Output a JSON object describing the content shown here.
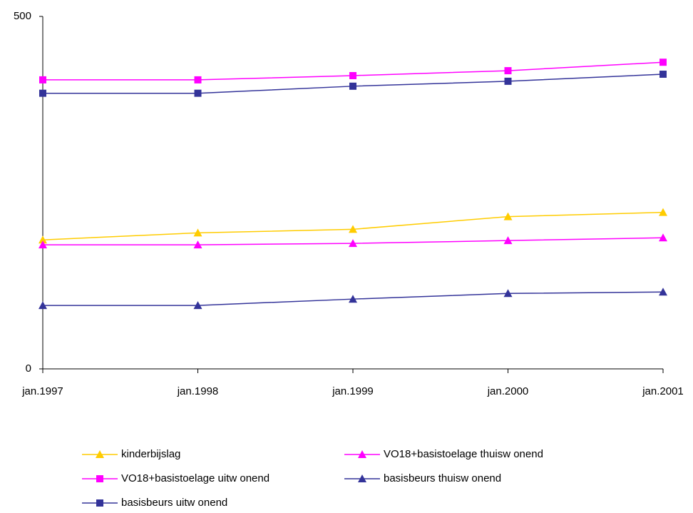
{
  "chart_data": {
    "type": "line",
    "categories": [
      "jan.1997",
      "jan.1998",
      "jan.1999",
      "jan.2000",
      "jan.2001"
    ],
    "ylim": [
      0,
      500
    ],
    "yticks": [
      0,
      500
    ],
    "grid": false,
    "series": [
      {
        "name": "kinderbijslag",
        "color": "#FFCC00",
        "marker": "triangle",
        "values": [
          183,
          193,
          198,
          216,
          222
        ]
      },
      {
        "name": "VO18+basistoelage thuisw onend",
        "color": "#FF00FF",
        "marker": "triangle",
        "values": [
          176,
          176,
          178,
          182,
          186
        ]
      },
      {
        "name": "VO18+basistoelage uitw onend",
        "color": "#FF00FF",
        "marker": "square",
        "values": [
          410,
          410,
          416,
          423,
          435
        ]
      },
      {
        "name": "basisbeurs thuisw onend",
        "color": "#333399",
        "marker": "triangle",
        "values": [
          90,
          90,
          99,
          107,
          109
        ]
      },
      {
        "name": "basisbeurs uitw onend",
        "color": "#333399",
        "marker": "square",
        "values": [
          391,
          391,
          401,
          408,
          418
        ]
      }
    ]
  }
}
